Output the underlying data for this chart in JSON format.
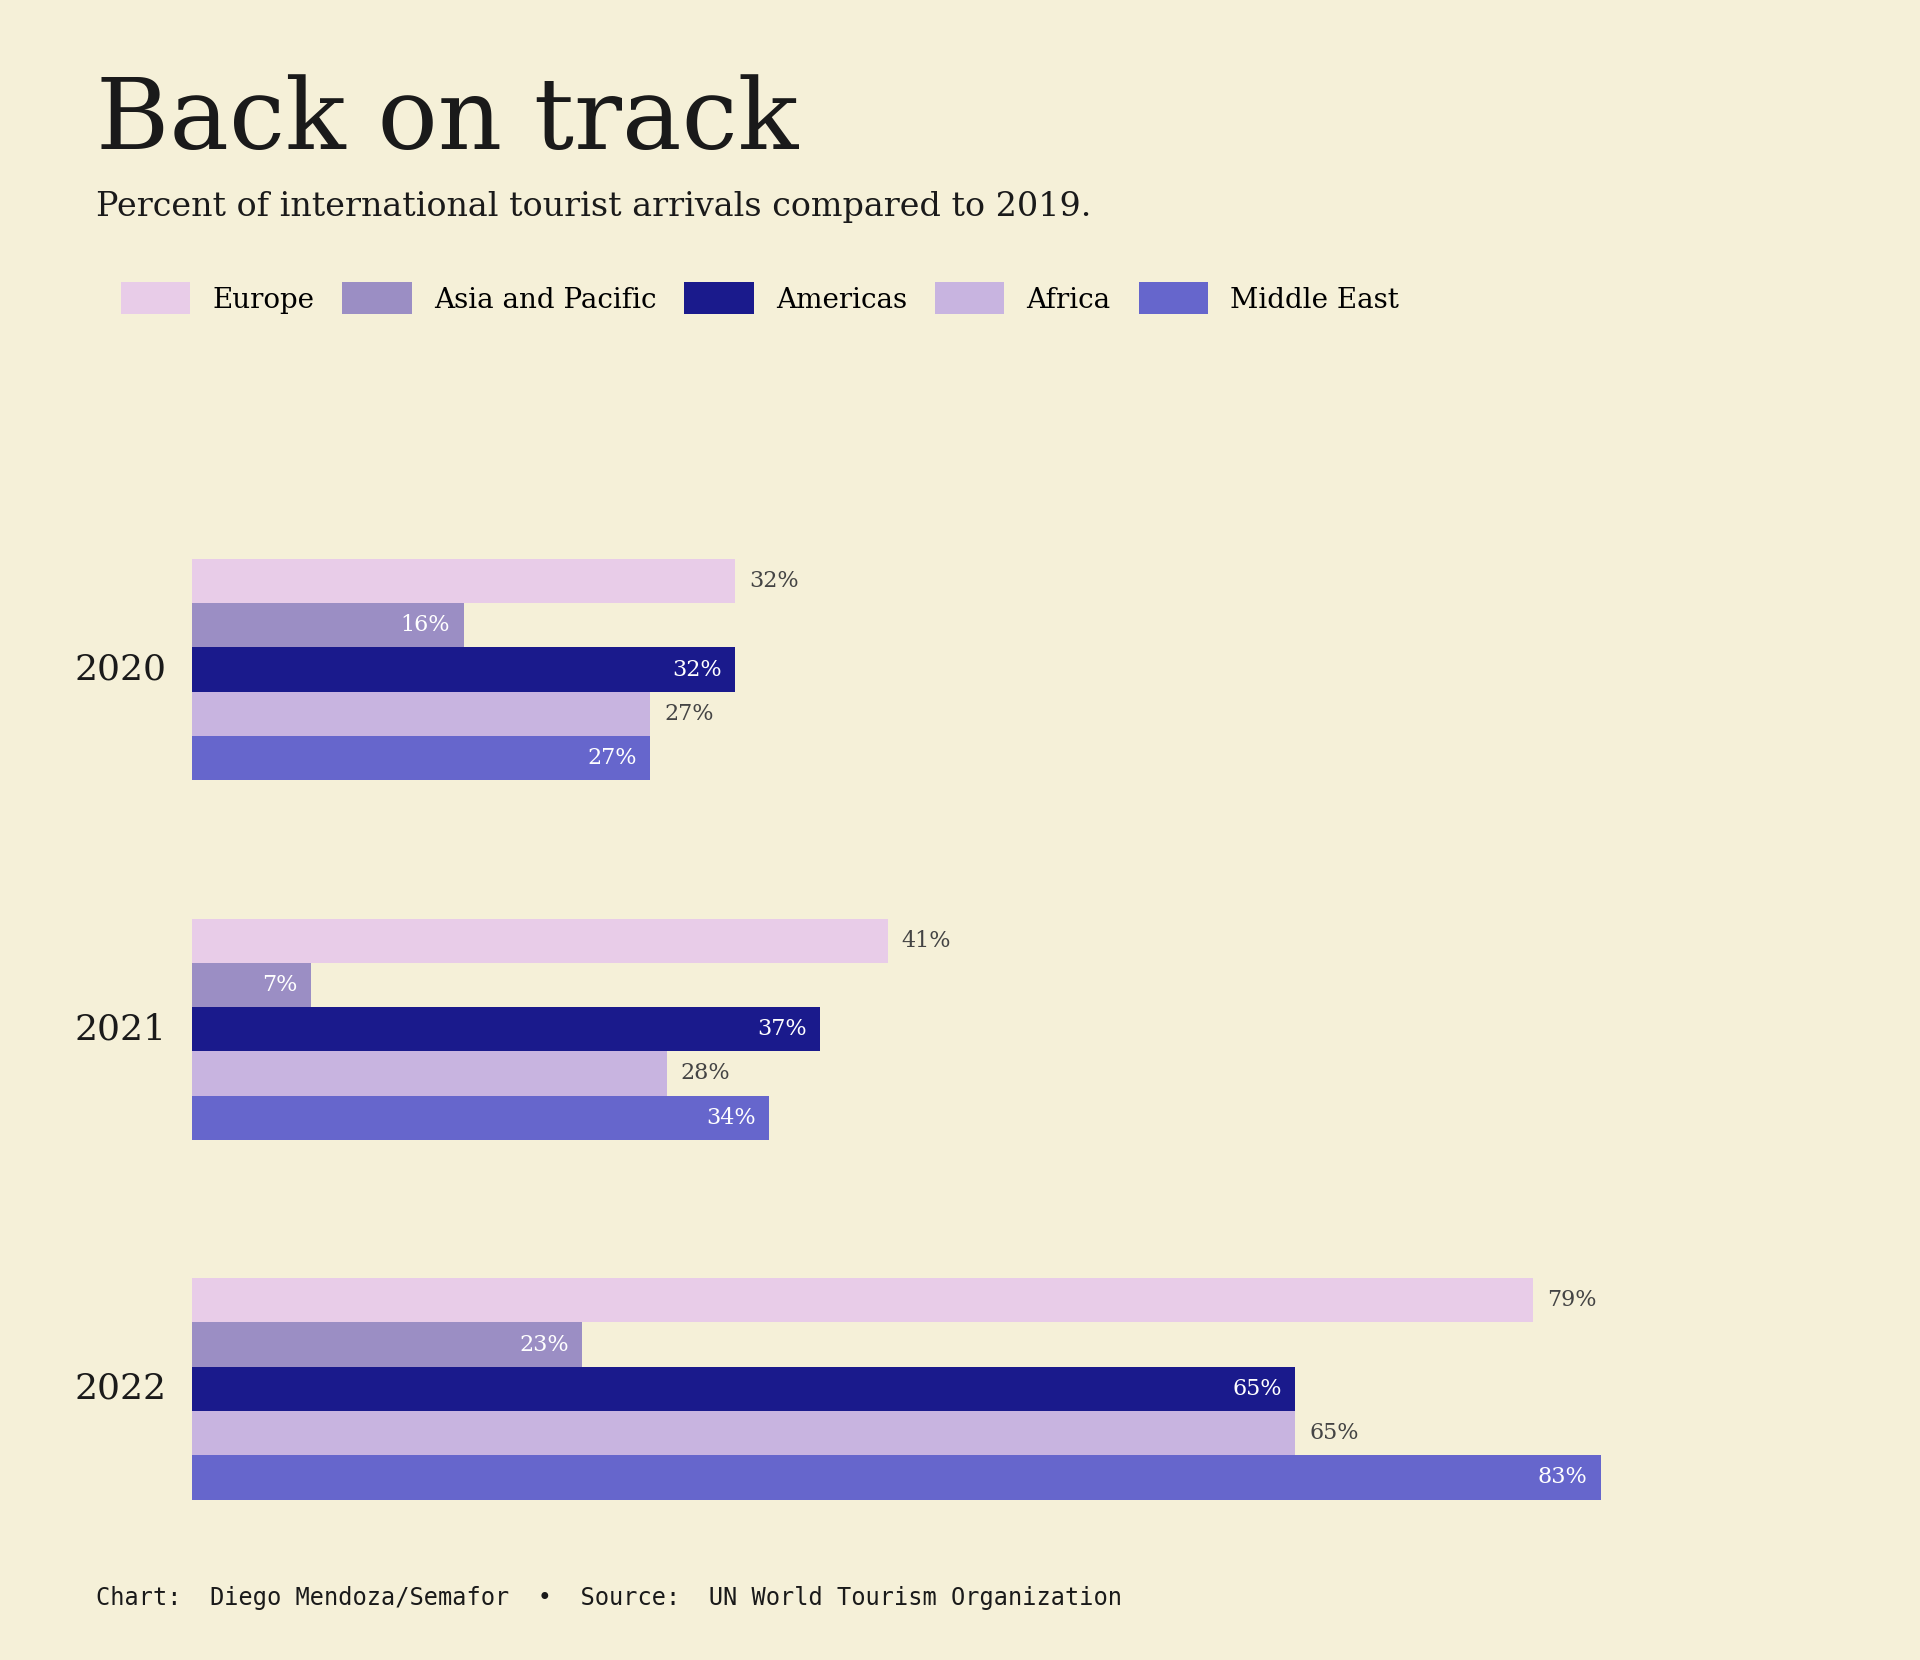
{
  "title": "Back on track",
  "subtitle": "Percent of international tourist arrivals compared to 2019.",
  "footer": "Chart:  Diego Mendoza/Semafor  •  Source:  UN World Tourism Organization",
  "background_color": "#f5f0d8",
  "years": [
    "2020",
    "2021",
    "2022"
  ],
  "categories": [
    "Europe",
    "Asia and Pacific",
    "Americas",
    "Africa",
    "Middle East"
  ],
  "colors": [
    "#e8cce8",
    "#9b8ec4",
    "#1a1a8c",
    "#c8b4e0",
    "#6666cc"
  ],
  "data": {
    "2020": [
      32,
      16,
      32,
      27,
      27
    ],
    "2021": [
      41,
      7,
      37,
      28,
      34
    ],
    "2022": [
      79,
      23,
      65,
      65,
      83
    ]
  },
  "label_inside": {
    "Europe": false,
    "Asia and Pacific": true,
    "Americas": true,
    "Africa": false,
    "Middle East": true
  },
  "figsize": [
    19.2,
    16.6
  ],
  "dpi": 100
}
